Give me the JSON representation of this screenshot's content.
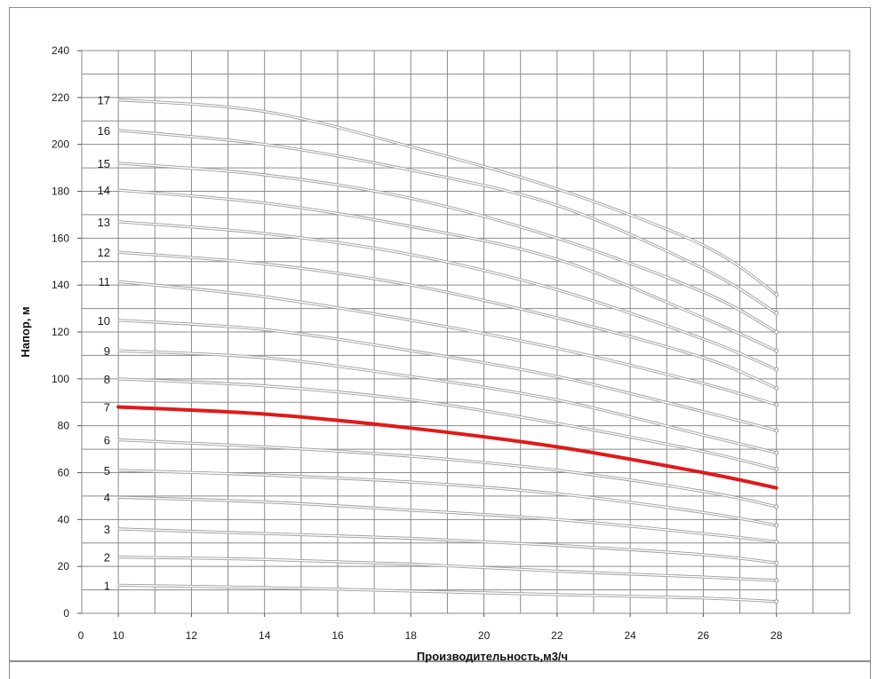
{
  "chart_data": {
    "type": "line",
    "xlabel": "Производительность,м3/ч",
    "ylabel": "Напор, м",
    "xlim": [
      9,
      30
    ],
    "ylim": [
      0,
      240
    ],
    "origin_label": "0",
    "x_ticks": [
      10,
      12,
      14,
      16,
      18,
      20,
      22,
      24,
      26,
      28
    ],
    "y_ticks": [
      0,
      20,
      40,
      60,
      80,
      100,
      120,
      140,
      160,
      180,
      200,
      220,
      240
    ],
    "grid": true,
    "highlight_color": "#e01a1a",
    "curve_color": "#b4b4b4",
    "x": [
      10,
      14,
      18,
      22,
      26,
      28
    ],
    "series": [
      {
        "name": "1",
        "values": [
          12,
          11,
          9.5,
          8,
          6.5,
          5
        ],
        "highlight": false
      },
      {
        "name": "2",
        "values": [
          24,
          23,
          21,
          18,
          15.5,
          14
        ],
        "highlight": false
      },
      {
        "name": "3",
        "values": [
          36,
          34,
          32,
          29,
          25,
          21.5
        ],
        "highlight": false
      },
      {
        "name": "4",
        "values": [
          49.5,
          47.5,
          44,
          40,
          34,
          30.5
        ],
        "highlight": false
      },
      {
        "name": "5",
        "values": [
          61,
          59,
          56,
          51,
          43,
          37.5
        ],
        "highlight": false
      },
      {
        "name": "6",
        "values": [
          74,
          71,
          67,
          61,
          52,
          45.5
        ],
        "highlight": false
      },
      {
        "name": "7",
        "values": [
          88,
          85,
          79,
          71,
          60,
          53.5
        ],
        "highlight": true
      },
      {
        "name": "8",
        "values": [
          100,
          97,
          91,
          81,
          69,
          61.5
        ],
        "highlight": false
      },
      {
        "name": "9",
        "values": [
          112,
          109,
          101,
          91,
          76,
          68.5
        ],
        "highlight": false
      },
      {
        "name": "10",
        "values": [
          125,
          121,
          112,
          101,
          86,
          78
        ],
        "highlight": false
      },
      {
        "name": "11",
        "values": [
          141.5,
          135,
          125,
          113,
          98,
          89
        ],
        "highlight": false
      },
      {
        "name": "12",
        "values": [
          154,
          149,
          140,
          126,
          109,
          96
        ],
        "highlight": false
      },
      {
        "name": "13",
        "values": [
          167,
          162,
          153,
          138,
          117,
          104
        ],
        "highlight": false
      },
      {
        "name": "14",
        "values": [
          180.5,
          175,
          165,
          151,
          126,
          112
        ],
        "highlight": false
      },
      {
        "name": "15",
        "values": [
          192,
          187,
          177,
          160,
          137,
          120
        ],
        "highlight": false
      },
      {
        "name": "16",
        "values": [
          206,
          200,
          189,
          174,
          147,
          128
        ],
        "highlight": false
      },
      {
        "name": "17",
        "values": [
          219,
          214,
          199,
          181,
          157,
          136
        ],
        "highlight": false
      }
    ]
  }
}
